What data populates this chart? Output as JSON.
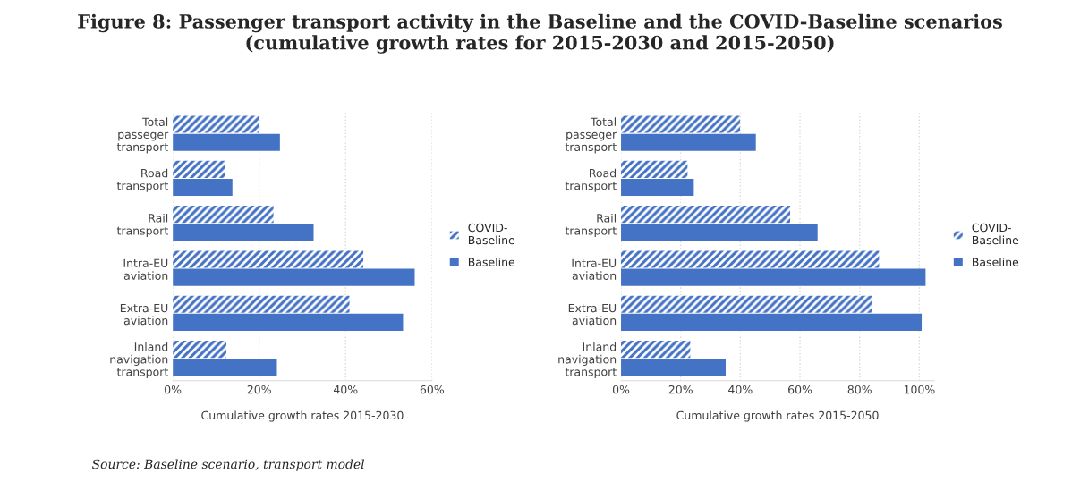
{
  "chart_data": [
    {
      "type": "bar",
      "orientation": "horizontal",
      "title": "Figure 8: Passenger transport activity in the Baseline and the COVID-Baseline scenarios\n(cumulative growth rates for 2015-2030 and 2015-2050)",
      "xlabel": "Cumulative growth rates 2015-2030",
      "categories": [
        "Total\npasseger\ntransport",
        "Road\ntransport",
        "Rail\ntransport",
        "Intra-EU\naviation",
        "Extra-EU\naviation",
        "Inland\nnavigation\ntransport"
      ],
      "series": [
        {
          "name": "COVID-\nBaseline",
          "color": "#4472c4",
          "values": [
            20.0,
            12.1,
            23.3,
            44.1,
            40.9,
            12.4
          ]
        },
        {
          "name": "Baseline",
          "color": "#4472c4",
          "values": [
            24.8,
            13.8,
            32.6,
            56.0,
            53.3,
            24.1
          ]
        }
      ],
      "xlim": [
        0,
        60
      ],
      "xticks": [
        {
          "value": 0,
          "label": "0%"
        },
        {
          "value": 20,
          "label": "20%"
        },
        {
          "value": 40,
          "label": "40%"
        },
        {
          "value": 60,
          "label": "60%"
        }
      ],
      "grid": "x",
      "legend": "right"
    },
    {
      "type": "bar",
      "orientation": "horizontal",
      "xlabel": "Cumulative growth rates 2015-2050",
      "categories": [
        "Total\npasseger\ntransport",
        "Road\ntransport",
        "Rail\ntransport",
        "Intra-EU\naviation",
        "Extra-EU\naviation",
        "Inland\nnavigation\ntransport"
      ],
      "series": [
        {
          "name": "COVID-\nBaseline",
          "color": "#4472c4",
          "values": [
            39.9,
            22.3,
            56.7,
            86.5,
            84.3,
            23.2
          ]
        },
        {
          "name": "Baseline",
          "color": "#4472c4",
          "values": [
            45.2,
            24.4,
            65.9,
            102.1,
            100.8,
            35.1
          ]
        }
      ],
      "xlim": [
        0,
        105
      ],
      "xticks": [
        {
          "value": 0,
          "label": "0%"
        },
        {
          "value": 20,
          "label": "20%"
        },
        {
          "value": 40,
          "label": "40%"
        },
        {
          "value": 60,
          "label": "60%"
        },
        {
          "value": 80,
          "label": "80%"
        },
        {
          "value": 100,
          "label": "100%"
        }
      ],
      "grid": "x",
      "legend": "right",
      "annotations": [
        "Source: Baseline scenario, transport model"
      ]
    }
  ]
}
